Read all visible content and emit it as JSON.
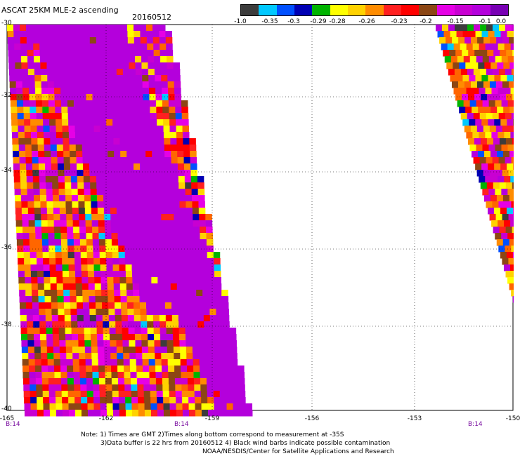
{
  "header": {
    "title": "ASCAT 25KM MLE-2 ascending",
    "date": "20160512"
  },
  "colorbar": {
    "colors": [
      "#3c3c3c",
      "#00c8ff",
      "#0050ff",
      "#0000b4",
      "#00b400",
      "#ffff00",
      "#ffd200",
      "#ff8c00",
      "#ff2020",
      "#ff0000",
      "#8c4614",
      "#e600e6",
      "#c800d2",
      "#b400dc",
      "#7800b4"
    ],
    "labels": [
      "-1.0",
      "-0.35",
      "-0.3",
      "-0.29",
      "-0.28",
      "-0.26",
      "-0.23",
      "-0.2",
      "-0.15",
      "-0.1",
      "0.0"
    ]
  },
  "axes": {
    "lat_labels": [
      "-30",
      "-32",
      "-34",
      "-36",
      "-38",
      "-40"
    ],
    "lon_labels": [
      "-165",
      "-162",
      "-159",
      "-156",
      "-153",
      "-150"
    ]
  },
  "time_marks": [
    "B:14",
    "B:14",
    "B:14"
  ],
  "notes": {
    "line1": "Note: 1) Times are GMT 2)Times along bottom correspond to measurement at -35S",
    "line2": "3)Data buffer is 22 hrs from 20160512 4) Black wind barbs indicate possible contamination",
    "line3": "NOAA/NESDIS/Center for Satellite Applications and Research"
  }
}
